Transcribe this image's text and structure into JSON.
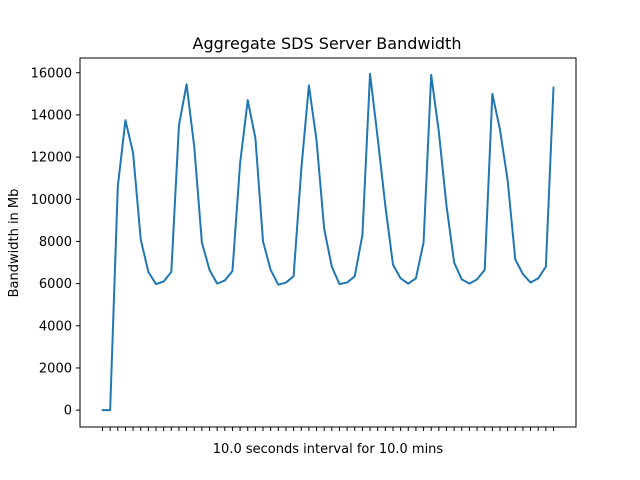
{
  "chart_data": {
    "type": "line",
    "title": "Aggregate SDS Server Bandwidth",
    "xlabel": "10.0 seconds interval for 10.0 mins",
    "ylabel": "Bandwidth in Mb",
    "ylim": [
      -800,
      16700
    ],
    "yticks": [
      0,
      2000,
      4000,
      6000,
      8000,
      10000,
      12000,
      14000,
      16000
    ],
    "xtick_count": 60,
    "grid": false,
    "line_color": "#1f77b4",
    "series": [
      {
        "values": [
          0,
          0,
          10600,
          13750,
          12200,
          8100,
          6550,
          5980,
          6100,
          6550,
          13500,
          15450,
          12500,
          7950,
          6650,
          6000,
          6150,
          6600,
          11700,
          14700,
          12900,
          8000,
          6650,
          5950,
          6050,
          6350,
          11400,
          15400,
          12800,
          8600,
          6800,
          5980,
          6050,
          6350,
          8300,
          15950,
          12900,
          9700,
          6900,
          6250,
          6000,
          6250,
          7950,
          15900,
          13200,
          9700,
          7000,
          6200,
          6000,
          6200,
          6650,
          15000,
          13300,
          10900,
          7150,
          6450,
          6050,
          6250,
          6800,
          15300
        ]
      }
    ]
  }
}
